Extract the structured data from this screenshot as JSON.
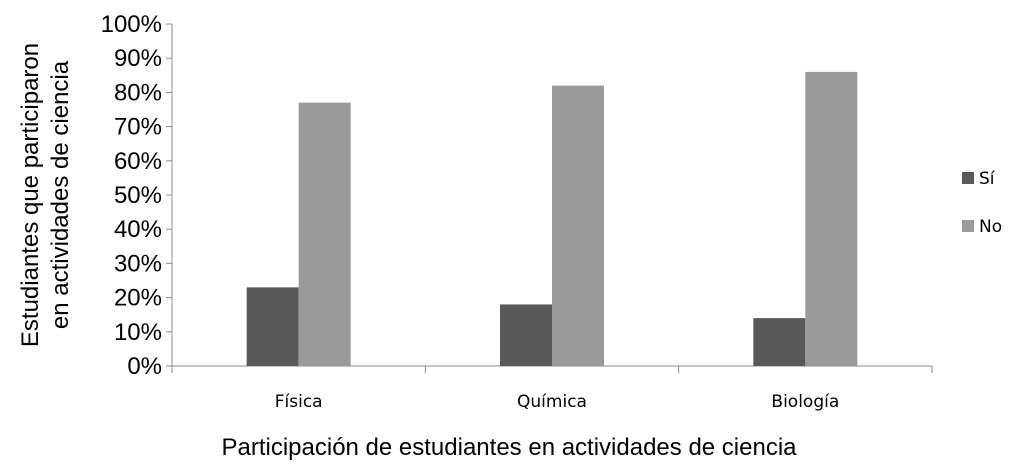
{
  "chart_data": {
    "type": "bar",
    "title": "",
    "xlabel": "Participación de estudiantes en actividades de ciencia",
    "ylabel_lines": [
      "Estudiantes que participaron",
      "en actividades de ciencia"
    ],
    "categories": [
      "Física",
      "Química",
      "Biología"
    ],
    "series": [
      {
        "name": "Sí",
        "values": [
          23,
          18,
          14
        ],
        "color": "#595959"
      },
      {
        "name": "No",
        "values": [
          77,
          82,
          86
        ],
        "color": "#9a9a9a"
      }
    ],
    "ylim": [
      0,
      100
    ],
    "yticks": [
      "0%",
      "10%",
      "20%",
      "30%",
      "40%",
      "50%",
      "60%",
      "70%",
      "80%",
      "90%",
      "100%"
    ],
    "grid": false,
    "legend_position": "right"
  }
}
